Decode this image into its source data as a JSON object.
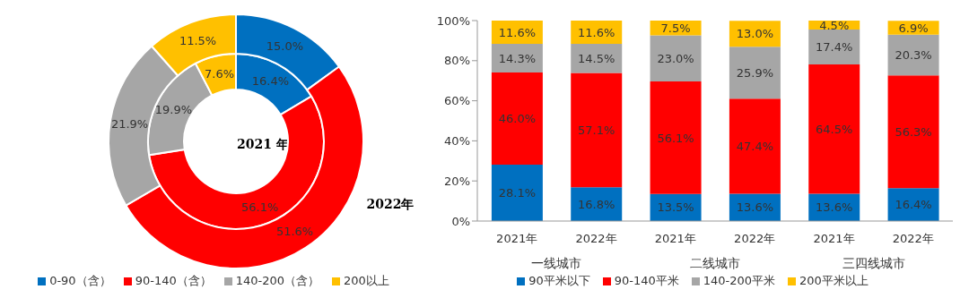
{
  "chart_data": [
    {
      "type": "donut",
      "categories": [
        "0-90（含）",
        "90-140（含）",
        "140-200（含）",
        "200以上"
      ],
      "colors": [
        "#0070c0",
        "#ff0000",
        "#a6a6a6",
        "#ffc000"
      ],
      "legend": "bottom",
      "series": [
        {
          "name": "2021 年",
          "values": [
            16.4,
            56.1,
            19.9,
            7.6
          ],
          "value_labels": [
            "16.4%",
            "56.1%",
            "19.9%",
            "7.6%"
          ]
        },
        {
          "name": "2022年",
          "values": [
            15.0,
            51.6,
            21.9,
            11.5
          ],
          "value_labels": [
            "15.0%",
            "51.6%",
            "21.9%",
            "11.5%"
          ]
        }
      ]
    },
    {
      "type": "bar",
      "stacked": true,
      "categories": [
        "2021年",
        "2022年",
        "2021年",
        "2022年",
        "2021年",
        "2022年"
      ],
      "ylim": [
        0,
        100
      ],
      "yticks": [
        {
          "value": 0,
          "label": "0%"
        },
        {
          "value": 20,
          "label": "20%"
        },
        {
          "value": 40,
          "label": "40%"
        },
        {
          "value": 60,
          "label": "60%"
        },
        {
          "value": 80,
          "label": "80%"
        },
        {
          "value": 100,
          "label": "100%"
        }
      ],
      "legend": "bottom",
      "annotations": [
        "一线城市",
        "二线城市",
        "三四线城市"
      ],
      "series": [
        {
          "name": "90平米以下",
          "color": "#0070c0",
          "values": [
            28.1,
            16.8,
            13.5,
            13.6,
            13.6,
            16.4
          ],
          "value_labels": [
            "28.1%",
            "16.8%",
            "13.5%",
            "13.6%",
            "13.6%",
            "16.4%"
          ]
        },
        {
          "name": "90-140平米",
          "color": "#ff0000",
          "values": [
            46.0,
            57.1,
            56.1,
            47.4,
            64.5,
            56.3
          ],
          "value_labels": [
            "46.0%",
            "57.1%",
            "56.1%",
            "47.4%",
            "64.5%",
            "56.3%"
          ]
        },
        {
          "name": "140-200平米",
          "color": "#a6a6a6",
          "values": [
            14.3,
            14.5,
            23.0,
            25.9,
            17.4,
            20.3
          ],
          "value_labels": [
            "14.3%",
            "14.5%",
            "23.0%",
            "25.9%",
            "17.4%",
            "20.3%"
          ]
        },
        {
          "name": "200平米以上",
          "color": "#ffc000",
          "values": [
            11.6,
            11.6,
            7.5,
            13.0,
            4.5,
            6.9
          ],
          "value_labels": [
            "11.6%",
            "11.6%",
            "7.5%",
            "13.0%",
            "4.5%",
            "6.9%"
          ]
        }
      ]
    }
  ]
}
